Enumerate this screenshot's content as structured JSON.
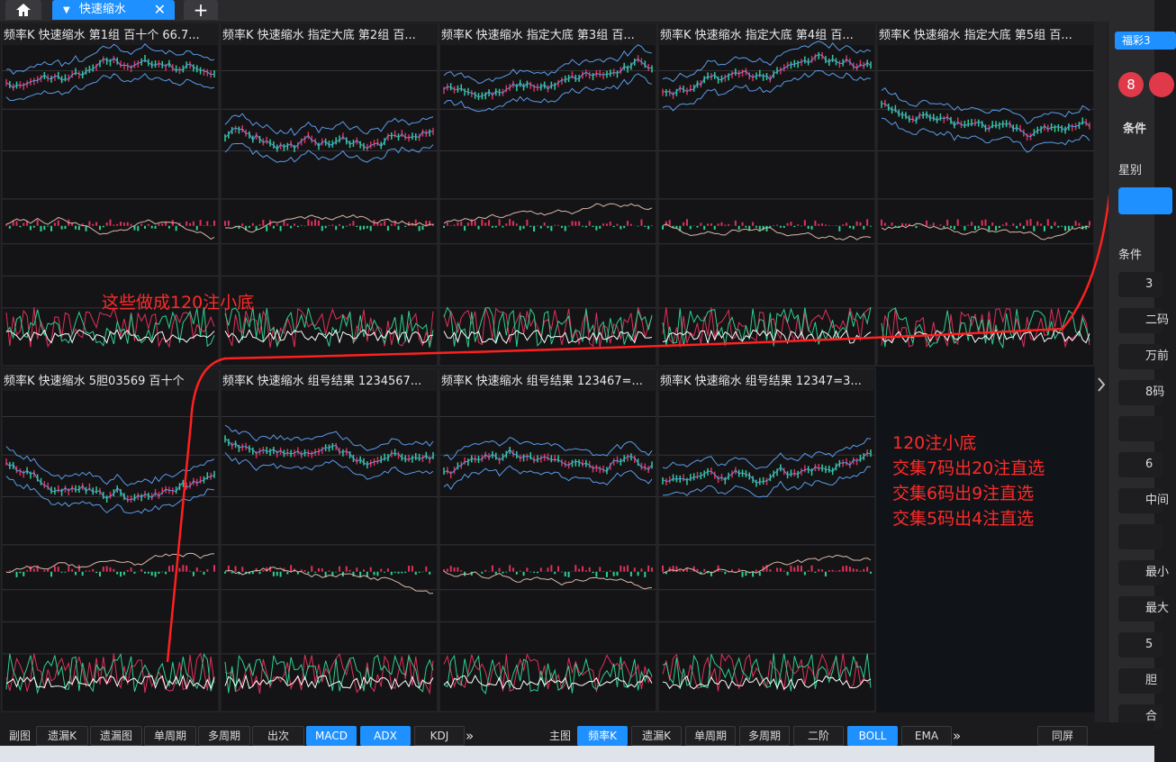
{
  "tabs": {
    "active": "快速缩水"
  },
  "panels": [
    {
      "title": "频率K  快速缩水  第1组  百十个  66.7..."
    },
    {
      "title": "频率K  快速缩水  指定大底 第2组  百..."
    },
    {
      "title": "频率K  快速缩水  指定大底 第3组  百..."
    },
    {
      "title": "频率K  快速缩水  指定大底 第4组  百..."
    },
    {
      "title": "频率K  快速缩水  指定大底 第5组  百..."
    },
    {
      "title": "频率K  快速缩水  5胆03569  百十个"
    },
    {
      "title": "频率K  快速缩水  组号结果 1234567..."
    },
    {
      "title": "频率K  快速缩水  组号结果 123467=..."
    },
    {
      "title": "频率K  快速缩水  组号结果 12347=3..."
    }
  ],
  "annotations": {
    "top": "这些做成120注小底",
    "right": [
      "120注小底",
      "交集7码出20注直选",
      "交集6码出9注直选",
      "交集5码出4注直选"
    ]
  },
  "toolbar": {
    "sub_label": "副图",
    "sub_buttons": [
      "遗漏K",
      "遗漏图",
      "单周期",
      "多周期",
      "出次",
      "MACD",
      "ADX",
      "KDJ"
    ],
    "main_label": "主图",
    "main_buttons": [
      "频率K",
      "遗漏K",
      "单周期",
      "多周期",
      "二阶",
      "BOLL",
      "EMA"
    ],
    "more": "»",
    "same_screen": "同屏"
  },
  "sidebar": {
    "tab": "福彩3",
    "ball": "8",
    "cond1": "条件",
    "star": "星别",
    "cond2": "条件",
    "items": [
      "3",
      "二码",
      "万前",
      "8码",
      "",
      "6",
      "中间",
      "",
      "最小",
      "最大",
      "5",
      "胆",
      "合"
    ]
  }
}
